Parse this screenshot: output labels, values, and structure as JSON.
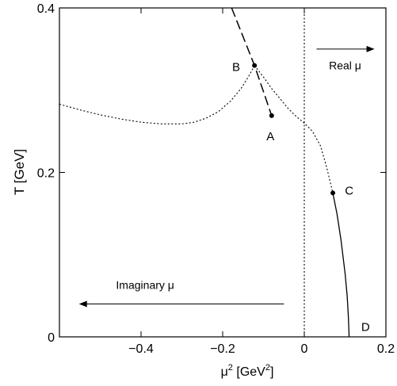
{
  "chart_data": {
    "type": "line",
    "xlabel": "μ",
    "xlabel_sup": "2",
    "xlabel_unit_prefix": " [GeV",
    "xlabel_unit_sup": "2",
    "xlabel_unit_suffix": "]",
    "ylabel": "T [GeV]",
    "xlim": [
      -0.6,
      0.2
    ],
    "ylim": [
      0,
      0.4
    ],
    "xticks": [
      {
        "value": -0.4,
        "label": "−0.4"
      },
      {
        "value": -0.2,
        "label": "−0.2"
      },
      {
        "value": 0,
        "label": "0"
      },
      {
        "value": 0.2,
        "label": "0.2"
      }
    ],
    "yticks": [
      {
        "value": 0,
        "label": "0"
      },
      {
        "value": 0.2,
        "label": "0.2"
      },
      {
        "value": 0.4,
        "label": "0.4"
      }
    ],
    "series": [
      {
        "style": "dotted",
        "color": "#000000",
        "x": [
          -0.6,
          -0.55,
          -0.5,
          -0.45,
          -0.4,
          -0.35,
          -0.3,
          -0.27,
          -0.24,
          -0.21,
          -0.18,
          -0.155,
          -0.135,
          -0.122
        ],
        "y": [
          0.283,
          0.276,
          0.27,
          0.265,
          0.261,
          0.259,
          0.259,
          0.261,
          0.266,
          0.274,
          0.287,
          0.302,
          0.318,
          0.33
        ]
      },
      {
        "style": "dashed",
        "color": "#000000",
        "x": [
          -0.178,
          -0.122,
          -0.08
        ],
        "y": [
          0.4,
          0.33,
          0.269
        ]
      },
      {
        "style": "dotted",
        "color": "#000000",
        "x": [
          -0.122,
          -0.1,
          -0.08,
          -0.06,
          -0.04,
          -0.02,
          0.0,
          0.02,
          0.04,
          0.055,
          0.07
        ],
        "y": [
          0.33,
          0.316,
          0.302,
          0.29,
          0.278,
          0.268,
          0.26,
          0.25,
          0.232,
          0.206,
          0.175
        ]
      },
      {
        "style": "solid",
        "color": "#000000",
        "x": [
          0.07,
          0.08,
          0.09,
          0.1,
          0.105,
          0.108,
          0.11
        ],
        "y": [
          0.175,
          0.15,
          0.118,
          0.077,
          0.05,
          0.025,
          0.0
        ]
      },
      {
        "style": "dotted-vertical",
        "color": "#000000",
        "x": [
          0,
          0
        ],
        "y": [
          0,
          0.4
        ]
      }
    ],
    "points": [
      {
        "label": "A",
        "x": -0.08,
        "y": 0.269,
        "label_dx": -0.003,
        "label_dy": -0.025
      },
      {
        "label": "B",
        "x": -0.122,
        "y": 0.33,
        "label_dx": -0.045,
        "label_dy": -0.002
      },
      {
        "label": "C",
        "x": 0.07,
        "y": 0.175,
        "label_dx": 0.04,
        "label_dy": 0.003
      },
      {
        "label": "D",
        "x": 0.11,
        "y": 0.0,
        "label_dx": 0.04,
        "label_dy": 0.012
      }
    ],
    "annotations": [
      {
        "text": "Real μ",
        "arrow_from": [
          0.03,
          0.35
        ],
        "arrow_to": [
          0.17,
          0.35
        ],
        "text_at": [
          0.1,
          0.33
        ]
      },
      {
        "text": "Imaginary μ",
        "arrow_from": [
          -0.05,
          0.04
        ],
        "arrow_to": [
          -0.55,
          0.04
        ],
        "text_at": [
          -0.39,
          0.063
        ]
      }
    ]
  }
}
